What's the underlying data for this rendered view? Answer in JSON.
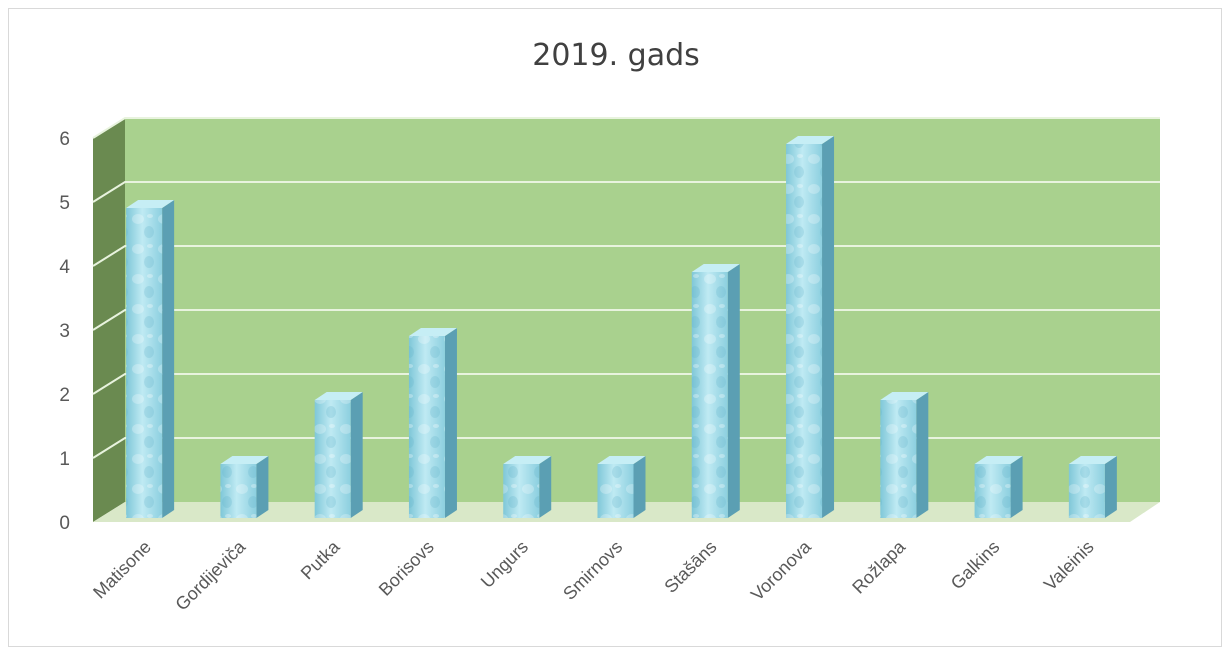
{
  "chart_data": {
    "type": "bar",
    "title": "2019. gads",
    "categories": [
      "Matisone",
      "Gordijeviča",
      "Putka",
      "Borisovs",
      "Ungurs",
      "Smirnovs",
      "Stašāns",
      "Voronova",
      "Rožlapa",
      "Galkins",
      "Valeinis"
    ],
    "values": [
      5,
      1,
      2,
      3,
      1,
      1,
      4,
      6,
      2,
      1,
      1
    ],
    "ylim": [
      0,
      6
    ],
    "yticks": [
      "0",
      "1",
      "2",
      "3",
      "4",
      "5",
      "6"
    ],
    "grid": true,
    "xlabel": "",
    "ylabel": "",
    "style": "3d",
    "colors": {
      "wall": "#a9d18e",
      "side_wall": "#6a8a50",
      "floor": "#d9e8c8",
      "bar_front": "#9fdbe8",
      "bar_side": "#5b9fb3",
      "bar_top": "#c6eef5",
      "gridline": "#e8f3de",
      "text": "#595959"
    }
  }
}
